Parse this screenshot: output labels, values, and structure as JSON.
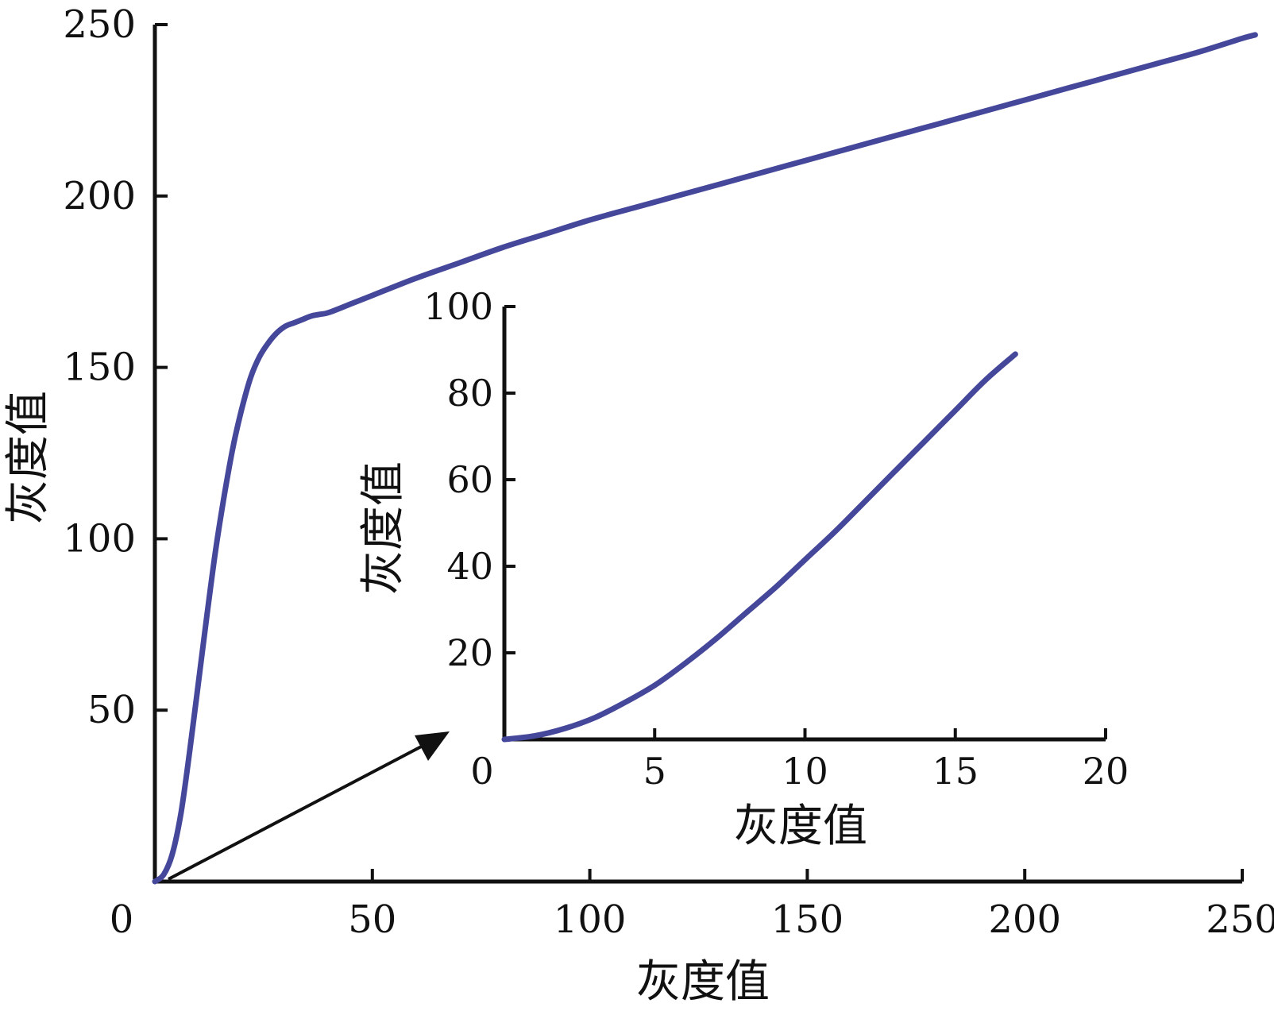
{
  "chart_data": [
    {
      "type": "line",
      "title": "",
      "xlabel": "灰度值",
      "ylabel": "灰度值",
      "xlim": [
        0,
        250
      ],
      "ylim": [
        0,
        250
      ],
      "xticks": [
        "0",
        "50",
        "100",
        "150",
        "200",
        "250"
      ],
      "yticks": [
        "50",
        "100",
        "150",
        "200",
        "250"
      ],
      "grid": false,
      "series": [
        {
          "color": "#45479a",
          "x": [
            0,
            2,
            4,
            6,
            8,
            10,
            12,
            14,
            16,
            18,
            20,
            22,
            24,
            26,
            28,
            30,
            32,
            34,
            36,
            38,
            40,
            45,
            50,
            60,
            70,
            80,
            90,
            100,
            110,
            120,
            130,
            140,
            150,
            160,
            170,
            180,
            190,
            200,
            210,
            220,
            230,
            240,
            250,
            253
          ],
          "y": [
            0,
            2,
            8,
            20,
            38,
            58,
            78,
            97,
            113,
            127,
            138,
            147,
            153,
            157,
            160,
            162,
            163,
            164,
            165,
            165.5,
            166,
            168.5,
            171,
            176,
            180.5,
            185,
            189,
            193,
            196.5,
            200,
            203.5,
            207,
            210.5,
            214,
            217.5,
            221,
            224.5,
            228,
            231.5,
            235,
            238.5,
            242,
            246,
            247
          ]
        }
      ]
    },
    {
      "type": "line",
      "title": "",
      "xlabel": "灰度值",
      "ylabel": "灰度值",
      "xlim": [
        0,
        20
      ],
      "ylim": [
        0,
        100
      ],
      "xticks": [
        "0",
        "5",
        "10",
        "15",
        "20"
      ],
      "yticks": [
        "20",
        "40",
        "60",
        "80",
        "100"
      ],
      "grid": false,
      "series": [
        {
          "color": "#45479a",
          "x": [
            0,
            1,
            2,
            3,
            4,
            5,
            6,
            7,
            8,
            9,
            10,
            11,
            12,
            13,
            14,
            15,
            16,
            17
          ],
          "y": [
            0,
            0.8,
            2.5,
            5,
            8.5,
            12.5,
            17.5,
            23,
            29,
            35,
            41.5,
            48,
            55,
            62,
            69,
            76,
            83,
            89
          ]
        }
      ]
    }
  ]
}
